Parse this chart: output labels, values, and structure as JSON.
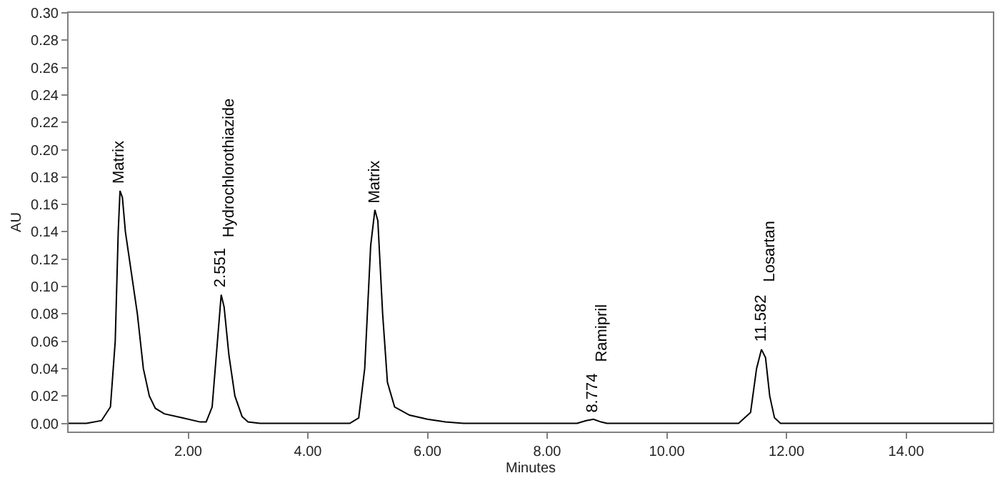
{
  "chart_data": {
    "type": "line",
    "xlabel": "Minutes",
    "ylabel": "AU",
    "xlim": [
      0,
      15.45
    ],
    "ylim": [
      -0.006,
      0.3
    ],
    "xticks": [
      {
        "value": 2,
        "label": "2.00"
      },
      {
        "value": 4,
        "label": "4.00"
      },
      {
        "value": 6,
        "label": "6.00"
      },
      {
        "value": 8,
        "label": "8.00"
      },
      {
        "value": 10,
        "label": "10.00"
      },
      {
        "value": 12,
        "label": "12.00"
      },
      {
        "value": 14,
        "label": "14.00"
      }
    ],
    "yticks": [
      {
        "value": 0,
        "label": "0.00"
      },
      {
        "value": 0.02,
        "label": "0.02"
      },
      {
        "value": 0.04,
        "label": "0.04"
      },
      {
        "value": 0.06,
        "label": "0.06"
      },
      {
        "value": 0.08,
        "label": "0.08"
      },
      {
        "value": 0.1,
        "label": "0.10"
      },
      {
        "value": 0.12,
        "label": "0.12"
      },
      {
        "value": 0.14,
        "label": "0.14"
      },
      {
        "value": 0.16,
        "label": "0.16"
      },
      {
        "value": 0.18,
        "label": "0.18"
      },
      {
        "value": 0.2,
        "label": "0.20"
      },
      {
        "value": 0.22,
        "label": "0.22"
      },
      {
        "value": 0.24,
        "label": "0.24"
      },
      {
        "value": 0.26,
        "label": "0.26"
      },
      {
        "value": 0.28,
        "label": "0.28"
      },
      {
        "value": 0.3,
        "label": "0.30"
      }
    ],
    "marker": "none",
    "line_style": "solid",
    "series": [
      {
        "color": "#000000",
        "x": [
          0,
          0.3,
          0.55,
          0.7,
          0.78,
          0.83,
          0.86,
          0.9,
          0.95,
          1.05,
          1.15,
          1.25,
          1.35,
          1.45,
          1.6,
          1.9,
          2.2,
          2.3,
          2.4,
          2.47,
          2.551,
          2.6,
          2.68,
          2.78,
          2.9,
          3.0,
          3.2,
          4.7,
          4.85,
          4.95,
          5.05,
          5.12,
          5.17,
          5.25,
          5.33,
          5.45,
          5.7,
          6.0,
          6.3,
          6.6,
          8.5,
          8.65,
          8.774,
          8.9,
          9.0,
          11.2,
          11.4,
          11.5,
          11.582,
          11.65,
          11.72,
          11.8,
          11.9,
          15.45
        ],
        "values": [
          0,
          0,
          0.002,
          0.012,
          0.06,
          0.14,
          0.17,
          0.165,
          0.14,
          0.11,
          0.08,
          0.04,
          0.02,
          0.011,
          0.007,
          0.004,
          0.001,
          0.001,
          0.012,
          0.05,
          0.094,
          0.085,
          0.05,
          0.02,
          0.005,
          0.001,
          0,
          0,
          0.004,
          0.04,
          0.13,
          0.156,
          0.148,
          0.08,
          0.03,
          0.012,
          0.006,
          0.003,
          0.001,
          0,
          0,
          0.002,
          0.003,
          0.001,
          0,
          0,
          0.008,
          0.04,
          0.054,
          0.048,
          0.02,
          0.004,
          0,
          0
        ]
      }
    ],
    "annotations": [
      {
        "text": "Matrix",
        "x": 0.86,
        "y": 0.17
      },
      {
        "text": "2.551",
        "x": 2.551,
        "y": 0.094
      },
      "Hydrochlorothiazide",
      {
        "text": "Matrix",
        "x": 5.12,
        "y": 0.156
      },
      {
        "text": "8.774",
        "x": 8.774,
        "y": 0.003
      },
      "Ramipril",
      {
        "text": "11.582",
        "x": 11.582,
        "y": 0.054
      },
      "Losartan"
    ]
  }
}
